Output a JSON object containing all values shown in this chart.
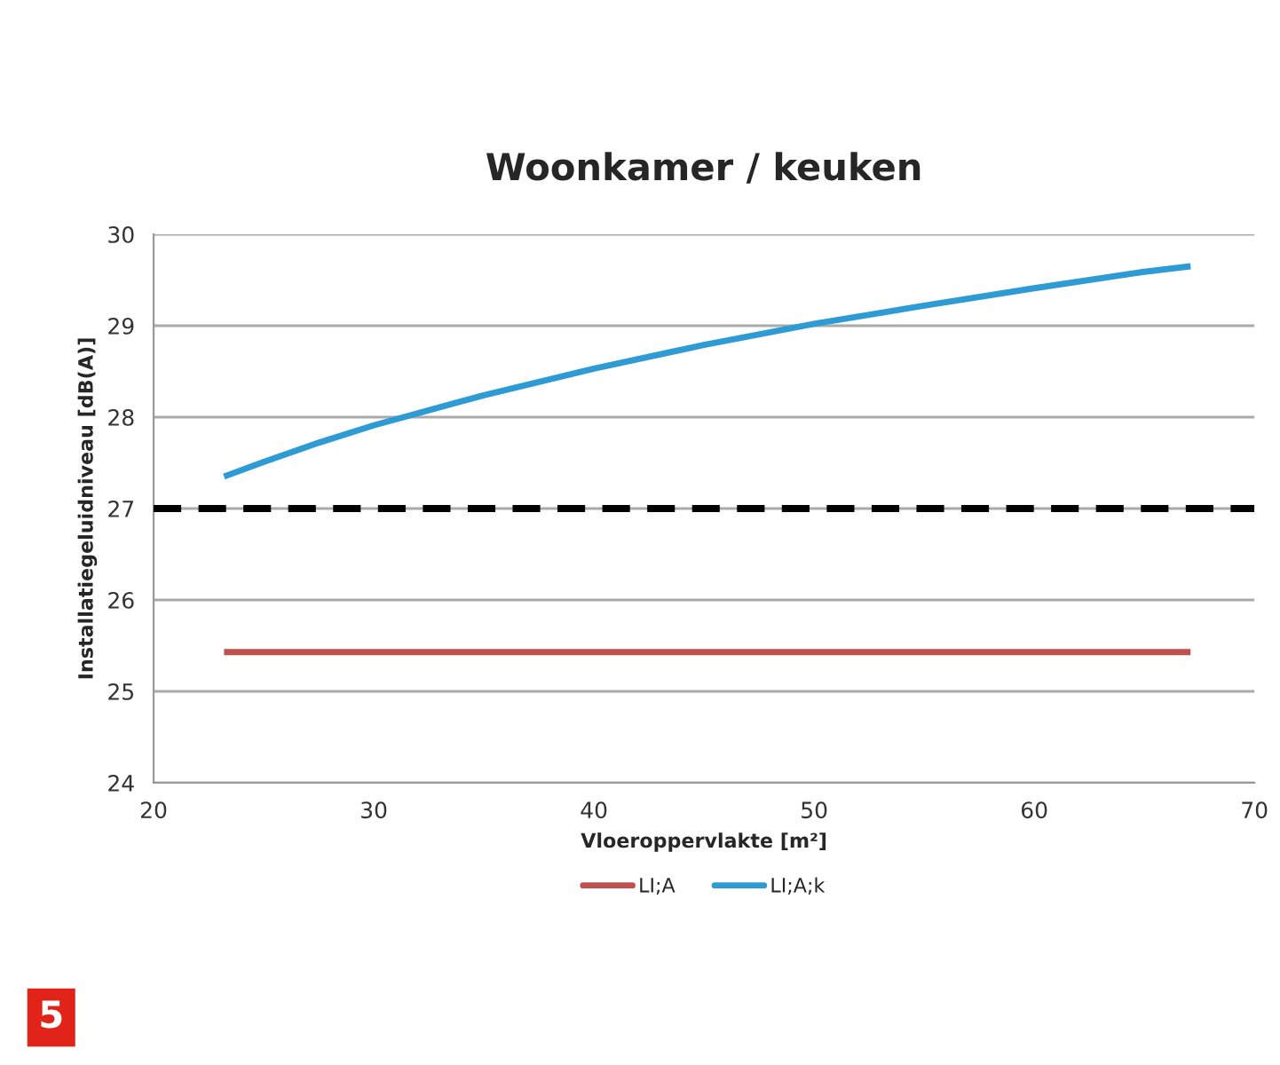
{
  "chart_data": {
    "type": "line",
    "title": "Woonkamer / keuken",
    "xlabel": "Vloeroppervlakte [m²]",
    "ylabel": "Installatiegeluidniveau [dB(A)]",
    "series": [
      {
        "name": "LI;A",
        "color": "#c0504d",
        "x": [
          23.2,
          67.1
        ],
        "values": [
          25.43,
          25.43
        ]
      },
      {
        "name": "LI;A;k",
        "color": "#2e9bd4",
        "x": [
          23.2,
          25,
          27.5,
          30,
          35,
          40,
          45,
          50,
          55,
          60,
          65,
          67.1
        ],
        "values": [
          27.35,
          27.51,
          27.72,
          27.91,
          28.24,
          28.53,
          28.79,
          29.02,
          29.22,
          29.41,
          29.59,
          29.65
        ]
      }
    ],
    "ref_lines": [
      {
        "axis": "y",
        "value": 27,
        "color": "#000000",
        "line_style": "dashed"
      }
    ],
    "xlim": [
      20,
      70
    ],
    "xticks": [
      20,
      30,
      40,
      50,
      60,
      70
    ],
    "ylim": [
      24,
      30
    ],
    "yticks": [
      24,
      25,
      26,
      27,
      28,
      29,
      30
    ],
    "grid": "y",
    "legend": "bottom",
    "marker": "none",
    "line_style": "solid",
    "annotations": [
      "5"
    ]
  }
}
